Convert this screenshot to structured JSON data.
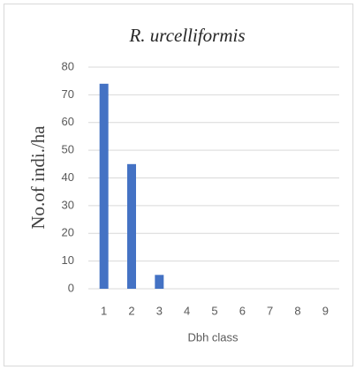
{
  "chart_data": {
    "type": "bar",
    "title": "R. urcelliformis",
    "x_label": "Dbh class",
    "y_label": "No.of indi./ha",
    "categories": [
      "1",
      "2",
      "3",
      "4",
      "5",
      "6",
      "7",
      "8",
      "9"
    ],
    "values": [
      74,
      45,
      5,
      0,
      0,
      0,
      0,
      0,
      0
    ],
    "color": "#4472c4",
    "ylim": [
      0,
      80
    ],
    "yticks": [
      0,
      10,
      20,
      30,
      40,
      50,
      60,
      70,
      80
    ],
    "grid": true
  }
}
